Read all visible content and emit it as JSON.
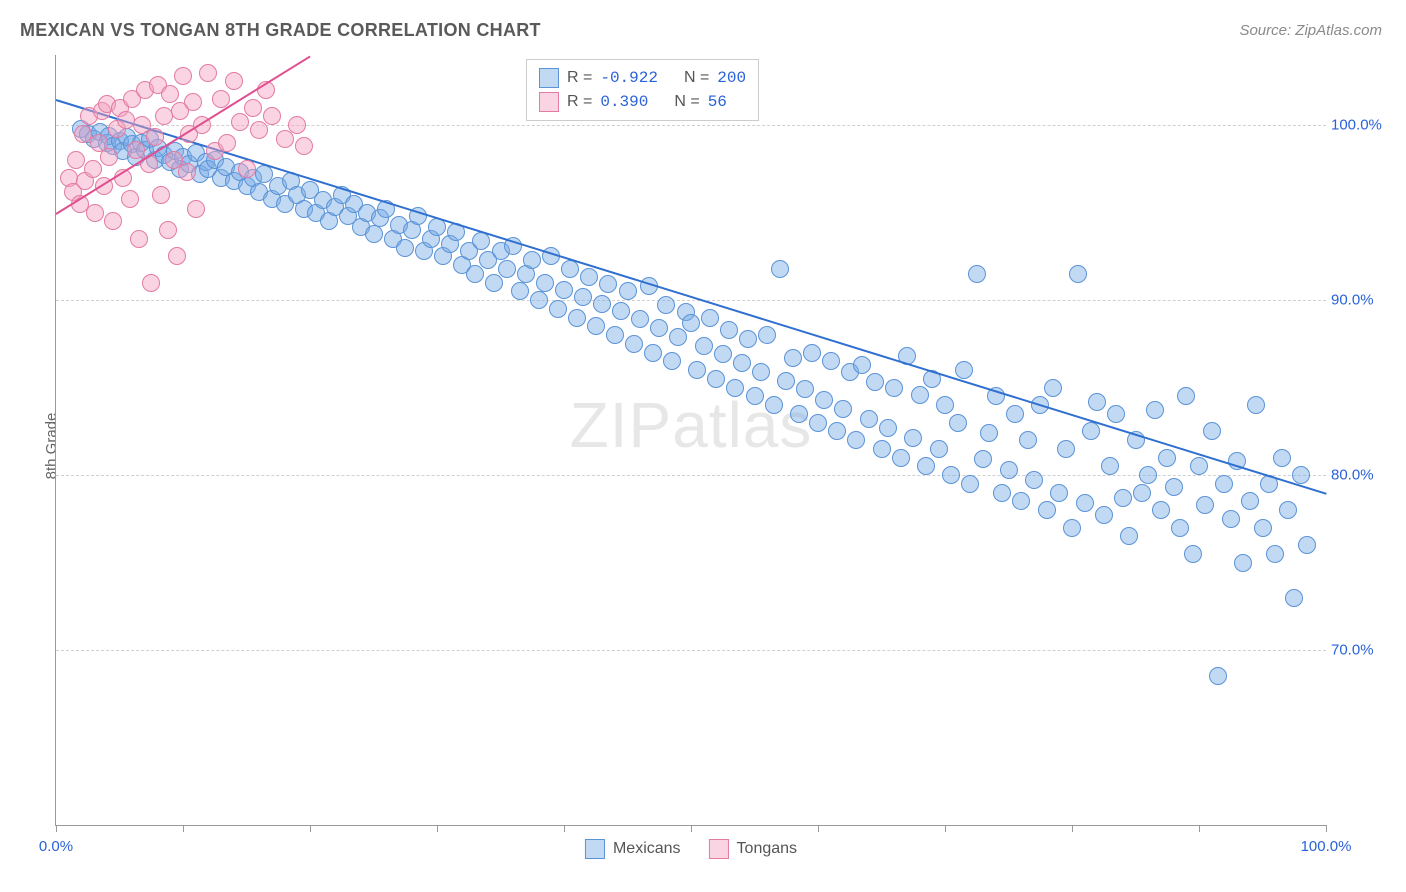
{
  "title": "MEXICAN VS TONGAN 8TH GRADE CORRELATION CHART",
  "source": "Source: ZipAtlas.com",
  "ylabel": "8th Grade",
  "watermark_a": "ZIP",
  "watermark_b": "atlas",
  "chart": {
    "type": "scatter",
    "xlim": [
      0,
      100
    ],
    "ylim": [
      60,
      104
    ],
    "yticks": [
      70,
      80,
      90,
      100
    ],
    "ytick_labels": [
      "70.0%",
      "80.0%",
      "90.0%",
      "100.0%"
    ],
    "xticks": [
      0,
      10,
      20,
      30,
      40,
      50,
      60,
      70,
      80,
      90,
      100
    ],
    "xtick_labels_shown": {
      "0": "0.0%",
      "100": "100.0%"
    },
    "grid_color": "#d0d0d0",
    "axis_color": "#999999",
    "label_color": "#2962d9",
    "background": "#ffffff",
    "point_radius": 8,
    "series": [
      {
        "name": "Mexicans",
        "fill": "rgba(120,170,230,0.45)",
        "stroke": "#5a93d6",
        "line_color": "#2f6fd0",
        "trend": {
          "x1": 0,
          "y1": 101.5,
          "x2": 100,
          "y2": 79
        },
        "R": "-0.922",
        "N": "200",
        "points": [
          [
            2,
            99.8
          ],
          [
            2.5,
            99.5
          ],
          [
            3,
            99.2
          ],
          [
            3.5,
            99.6
          ],
          [
            4,
            99.0
          ],
          [
            4.2,
            99.4
          ],
          [
            4.5,
            98.8
          ],
          [
            5,
            99.1
          ],
          [
            5.3,
            98.5
          ],
          [
            5.6,
            99.3
          ],
          [
            6,
            98.9
          ],
          [
            6.3,
            98.2
          ],
          [
            6.7,
            99.0
          ],
          [
            7,
            98.6
          ],
          [
            7.4,
            99.2
          ],
          [
            7.8,
            98.0
          ],
          [
            8,
            98.7
          ],
          [
            8.5,
            98.3
          ],
          [
            9,
            97.9
          ],
          [
            9.4,
            98.5
          ],
          [
            9.8,
            97.5
          ],
          [
            10,
            98.2
          ],
          [
            10.5,
            97.8
          ],
          [
            11,
            98.4
          ],
          [
            11.3,
            97.2
          ],
          [
            11.8,
            97.9
          ],
          [
            12,
            97.5
          ],
          [
            12.5,
            98.0
          ],
          [
            13,
            97.0
          ],
          [
            13.4,
            97.6
          ],
          [
            14,
            96.8
          ],
          [
            14.5,
            97.3
          ],
          [
            15,
            96.5
          ],
          [
            15.5,
            97.0
          ],
          [
            16,
            96.2
          ],
          [
            16.4,
            97.2
          ],
          [
            17,
            95.8
          ],
          [
            17.5,
            96.5
          ],
          [
            18,
            95.5
          ],
          [
            18.5,
            96.8
          ],
          [
            19,
            96.0
          ],
          [
            19.5,
            95.2
          ],
          [
            20,
            96.3
          ],
          [
            20.5,
            95.0
          ],
          [
            21,
            95.7
          ],
          [
            21.5,
            94.5
          ],
          [
            22,
            95.3
          ],
          [
            22.5,
            96.0
          ],
          [
            23,
            94.8
          ],
          [
            23.5,
            95.5
          ],
          [
            24,
            94.2
          ],
          [
            24.5,
            95.0
          ],
          [
            25,
            93.8
          ],
          [
            25.5,
            94.7
          ],
          [
            26,
            95.2
          ],
          [
            26.5,
            93.5
          ],
          [
            27,
            94.3
          ],
          [
            27.5,
            93.0
          ],
          [
            28,
            94.0
          ],
          [
            28.5,
            94.8
          ],
          [
            29,
            92.8
          ],
          [
            29.5,
            93.5
          ],
          [
            30,
            94.2
          ],
          [
            30.5,
            92.5
          ],
          [
            31,
            93.2
          ],
          [
            31.5,
            93.9
          ],
          [
            32,
            92.0
          ],
          [
            32.5,
            92.8
          ],
          [
            33,
            91.5
          ],
          [
            33.5,
            93.4
          ],
          [
            34,
            92.3
          ],
          [
            34.5,
            91.0
          ],
          [
            35,
            92.8
          ],
          [
            35.5,
            91.8
          ],
          [
            36,
            93.1
          ],
          [
            36.5,
            90.5
          ],
          [
            37,
            91.5
          ],
          [
            37.5,
            92.3
          ],
          [
            38,
            90.0
          ],
          [
            38.5,
            91.0
          ],
          [
            39,
            92.5
          ],
          [
            39.5,
            89.5
          ],
          [
            40,
            90.6
          ],
          [
            40.5,
            91.8
          ],
          [
            41,
            89.0
          ],
          [
            41.5,
            90.2
          ],
          [
            42,
            91.3
          ],
          [
            42.5,
            88.5
          ],
          [
            43,
            89.8
          ],
          [
            43.5,
            90.9
          ],
          [
            44,
            88.0
          ],
          [
            44.5,
            89.4
          ],
          [
            45,
            90.5
          ],
          [
            45.5,
            87.5
          ],
          [
            46,
            88.9
          ],
          [
            46.7,
            90.8
          ],
          [
            47,
            87.0
          ],
          [
            47.5,
            88.4
          ],
          [
            48,
            89.7
          ],
          [
            48.5,
            86.5
          ],
          [
            49,
            87.9
          ],
          [
            49.6,
            89.3
          ],
          [
            50,
            88.7
          ],
          [
            50.5,
            86.0
          ],
          [
            51,
            87.4
          ],
          [
            51.5,
            89.0
          ],
          [
            52,
            85.5
          ],
          [
            52.5,
            86.9
          ],
          [
            53,
            88.3
          ],
          [
            53.5,
            85.0
          ],
          [
            54,
            86.4
          ],
          [
            54.5,
            87.8
          ],
          [
            55,
            84.5
          ],
          [
            55.5,
            85.9
          ],
          [
            56,
            88.0
          ],
          [
            56.5,
            84.0
          ],
          [
            57,
            91.8
          ],
          [
            57.5,
            85.4
          ],
          [
            58,
            86.7
          ],
          [
            58.5,
            83.5
          ],
          [
            59,
            84.9
          ],
          [
            59.5,
            87.0
          ],
          [
            60,
            83.0
          ],
          [
            60.5,
            84.3
          ],
          [
            61,
            86.5
          ],
          [
            61.5,
            82.5
          ],
          [
            62,
            83.8
          ],
          [
            62.5,
            85.9
          ],
          [
            63,
            82.0
          ],
          [
            63.5,
            86.3
          ],
          [
            64,
            83.2
          ],
          [
            64.5,
            85.3
          ],
          [
            65,
            81.5
          ],
          [
            65.5,
            82.7
          ],
          [
            66,
            85.0
          ],
          [
            66.5,
            81.0
          ],
          [
            67,
            86.8
          ],
          [
            67.5,
            82.1
          ],
          [
            68,
            84.6
          ],
          [
            68.5,
            80.5
          ],
          [
            69,
            85.5
          ],
          [
            69.5,
            81.5
          ],
          [
            70,
            84.0
          ],
          [
            70.5,
            80.0
          ],
          [
            71,
            83.0
          ],
          [
            71.5,
            86.0
          ],
          [
            72,
            79.5
          ],
          [
            72.5,
            91.5
          ],
          [
            73,
            80.9
          ],
          [
            73.5,
            82.4
          ],
          [
            74,
            84.5
          ],
          [
            74.5,
            79.0
          ],
          [
            75,
            80.3
          ],
          [
            75.5,
            83.5
          ],
          [
            76,
            78.5
          ],
          [
            76.5,
            82.0
          ],
          [
            77,
            79.7
          ],
          [
            77.5,
            84.0
          ],
          [
            78,
            78.0
          ],
          [
            78.5,
            85.0
          ],
          [
            79,
            79.0
          ],
          [
            79.5,
            81.5
          ],
          [
            80,
            77.0
          ],
          [
            80.5,
            91.5
          ],
          [
            81,
            78.4
          ],
          [
            81.5,
            82.5
          ],
          [
            82,
            84.2
          ],
          [
            82.5,
            77.7
          ],
          [
            83,
            80.5
          ],
          [
            83.5,
            83.5
          ],
          [
            84,
            78.7
          ],
          [
            84.5,
            76.5
          ],
          [
            85,
            82.0
          ],
          [
            85.5,
            79.0
          ],
          [
            86,
            80.0
          ],
          [
            86.5,
            83.7
          ],
          [
            87,
            78.0
          ],
          [
            87.5,
            81.0
          ],
          [
            88,
            79.3
          ],
          [
            88.5,
            77.0
          ],
          [
            89,
            84.5
          ],
          [
            89.5,
            75.5
          ],
          [
            90,
            80.5
          ],
          [
            90.5,
            78.3
          ],
          [
            91,
            82.5
          ],
          [
            91.5,
            68.5
          ],
          [
            92,
            79.5
          ],
          [
            92.5,
            77.5
          ],
          [
            93,
            80.8
          ],
          [
            93.5,
            75.0
          ],
          [
            94,
            78.5
          ],
          [
            94.5,
            84.0
          ],
          [
            95,
            77.0
          ],
          [
            95.5,
            79.5
          ],
          [
            96,
            75.5
          ],
          [
            96.5,
            81.0
          ],
          [
            97,
            78.0
          ],
          [
            97.5,
            73.0
          ],
          [
            98,
            80.0
          ],
          [
            98.5,
            76.0
          ]
        ]
      },
      {
        "name": "Tongans",
        "fill": "rgba(245,160,190,0.45)",
        "stroke": "#e37ba3",
        "line_color": "#e05090",
        "trend": {
          "x1": 0,
          "y1": 95.0,
          "x2": 20,
          "y2": 104
        },
        "R": "0.390",
        "N": "56",
        "points": [
          [
            1,
            97.0
          ],
          [
            1.3,
            96.2
          ],
          [
            1.6,
            98.0
          ],
          [
            1.9,
            95.5
          ],
          [
            2.1,
            99.5
          ],
          [
            2.3,
            96.8
          ],
          [
            2.6,
            100.5
          ],
          [
            2.9,
            97.5
          ],
          [
            3.1,
            95.0
          ],
          [
            3.4,
            99.0
          ],
          [
            3.6,
            100.8
          ],
          [
            3.8,
            96.5
          ],
          [
            4.0,
            101.2
          ],
          [
            4.2,
            98.2
          ],
          [
            4.5,
            94.5
          ],
          [
            4.8,
            99.8
          ],
          [
            5.0,
            101.0
          ],
          [
            5.3,
            97.0
          ],
          [
            5.5,
            100.3
          ],
          [
            5.8,
            95.8
          ],
          [
            6.0,
            101.5
          ],
          [
            6.3,
            98.6
          ],
          [
            6.5,
            93.5
          ],
          [
            6.8,
            100.0
          ],
          [
            7.0,
            102.0
          ],
          [
            7.3,
            97.8
          ],
          [
            7.5,
            91.0
          ],
          [
            7.8,
            99.3
          ],
          [
            8.0,
            102.3
          ],
          [
            8.3,
            96.0
          ],
          [
            8.5,
            100.5
          ],
          [
            8.8,
            94.0
          ],
          [
            9.0,
            101.8
          ],
          [
            9.3,
            98.0
          ],
          [
            9.5,
            92.5
          ],
          [
            9.8,
            100.8
          ],
          [
            10.0,
            102.8
          ],
          [
            10.3,
            97.3
          ],
          [
            10.5,
            99.5
          ],
          [
            10.8,
            101.3
          ],
          [
            11.0,
            95.2
          ],
          [
            11.5,
            100.0
          ],
          [
            12.0,
            103.0
          ],
          [
            12.5,
            98.5
          ],
          [
            13.0,
            101.5
          ],
          [
            13.5,
            99.0
          ],
          [
            14.0,
            102.5
          ],
          [
            14.5,
            100.2
          ],
          [
            15.0,
            97.5
          ],
          [
            15.5,
            101.0
          ],
          [
            16.0,
            99.7
          ],
          [
            16.5,
            102.0
          ],
          [
            17.0,
            100.5
          ],
          [
            18.0,
            99.2
          ],
          [
            19.0,
            100.0
          ],
          [
            19.5,
            98.8
          ]
        ]
      }
    ]
  },
  "legend_top": {
    "rows": [
      {
        "swatch_fill": "rgba(120,170,230,0.45)",
        "swatch_stroke": "#5a93d6",
        "r_label": "R =",
        "r_val": "-0.922",
        "n_label": "N =",
        "n_val": "200"
      },
      {
        "swatch_fill": "rgba(245,160,190,0.45)",
        "swatch_stroke": "#e37ba3",
        "r_label": "R =",
        "r_val": " 0.390",
        "n_label": "N =",
        "n_val": " 56"
      }
    ]
  },
  "legend_bottom": [
    {
      "swatch_fill": "rgba(120,170,230,0.45)",
      "swatch_stroke": "#5a93d6",
      "label": "Mexicans"
    },
    {
      "swatch_fill": "rgba(245,160,190,0.45)",
      "swatch_stroke": "#e37ba3",
      "label": "Tongans"
    }
  ]
}
